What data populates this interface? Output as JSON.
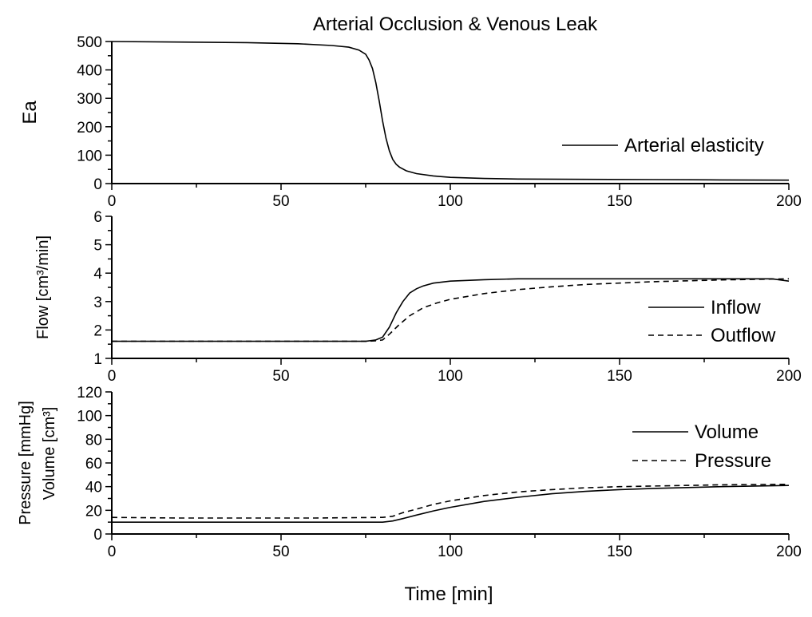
{
  "title": "Arterial Occlusion & Venous Leak",
  "chart_data": [
    {
      "type": "line",
      "id": "ea",
      "ylabel": "Ea",
      "xlim": [
        0,
        200
      ],
      "ylim": [
        0,
        500
      ],
      "xticks": [
        0,
        50,
        100,
        150,
        200
      ],
      "yticks": [
        0,
        100,
        200,
        300,
        400,
        500
      ],
      "legend_position": "right",
      "series": [
        {
          "name": "Arterial elasticity",
          "style": "solid",
          "x": [
            0,
            20,
            40,
            55,
            65,
            70,
            73,
            75,
            76,
            77,
            78,
            79,
            80,
            81,
            82,
            83,
            84,
            85,
            87,
            90,
            95,
            100,
            110,
            120,
            140,
            160,
            180,
            200
          ],
          "y": [
            500,
            498,
            496,
            492,
            486,
            480,
            470,
            455,
            435,
            405,
            355,
            290,
            220,
            160,
            115,
            85,
            68,
            58,
            45,
            35,
            27,
            22,
            18,
            16,
            15,
            14,
            13,
            12
          ]
        }
      ]
    },
    {
      "type": "line",
      "id": "flow",
      "ylabel": "Flow [cm³/min]",
      "xlim": [
        0,
        200
      ],
      "ylim": [
        1,
        6
      ],
      "xticks": [
        0,
        50,
        100,
        150,
        200
      ],
      "yticks": [
        1,
        2,
        3,
        4,
        5,
        6
      ],
      "legend_position": "right",
      "series": [
        {
          "name": "Inflow",
          "style": "solid",
          "x": [
            0,
            20,
            40,
            60,
            75,
            78,
            80,
            82,
            84,
            86,
            88,
            90,
            92,
            95,
            100,
            110,
            120,
            140,
            160,
            180,
            195,
            200
          ],
          "y": [
            1.6,
            1.6,
            1.6,
            1.6,
            1.6,
            1.65,
            1.75,
            2.1,
            2.6,
            3.0,
            3.3,
            3.45,
            3.55,
            3.65,
            3.72,
            3.77,
            3.8,
            3.8,
            3.8,
            3.8,
            3.8,
            3.72
          ]
        },
        {
          "name": "Outflow",
          "style": "dashed",
          "x": [
            0,
            20,
            40,
            60,
            75,
            78,
            80,
            82,
            85,
            88,
            92,
            96,
            100,
            110,
            120,
            130,
            140,
            160,
            180,
            200
          ],
          "y": [
            1.6,
            1.6,
            1.6,
            1.6,
            1.6,
            1.62,
            1.65,
            1.85,
            2.2,
            2.5,
            2.78,
            2.95,
            3.08,
            3.28,
            3.42,
            3.52,
            3.6,
            3.7,
            3.76,
            3.8
          ]
        }
      ]
    },
    {
      "type": "line",
      "id": "vp",
      "ylabel": "Pressure [mmHg]",
      "ylabel2": "Volume [cm³]",
      "xlabel": "Time [min]",
      "xlim": [
        0,
        200
      ],
      "ylim": [
        0,
        120
      ],
      "xticks": [
        0,
        50,
        100,
        150,
        200
      ],
      "yticks": [
        0,
        20,
        40,
        60,
        80,
        100,
        120
      ],
      "legend_position": "right",
      "series": [
        {
          "name": "Volume",
          "style": "solid",
          "x": [
            0,
            20,
            40,
            60,
            80,
            83,
            86,
            90,
            95,
            100,
            110,
            120,
            130,
            140,
            150,
            160,
            180,
            200
          ],
          "y": [
            10,
            10,
            10,
            10,
            10,
            11,
            13,
            16,
            19.5,
            22.5,
            27.5,
            31,
            34,
            36,
            37.5,
            38.5,
            40,
            41
          ]
        },
        {
          "name": "Pressure",
          "style": "dashed",
          "x": [
            0,
            20,
            40,
            60,
            80,
            83,
            86,
            90,
            95,
            100,
            110,
            120,
            130,
            140,
            150,
            160,
            180,
            200
          ],
          "y": [
            14,
            13.5,
            13.5,
            13.5,
            14,
            15,
            18,
            21,
            25,
            28,
            32.5,
            35.5,
            37.5,
            39,
            40,
            40.5,
            41.5,
            42
          ]
        }
      ]
    }
  ]
}
